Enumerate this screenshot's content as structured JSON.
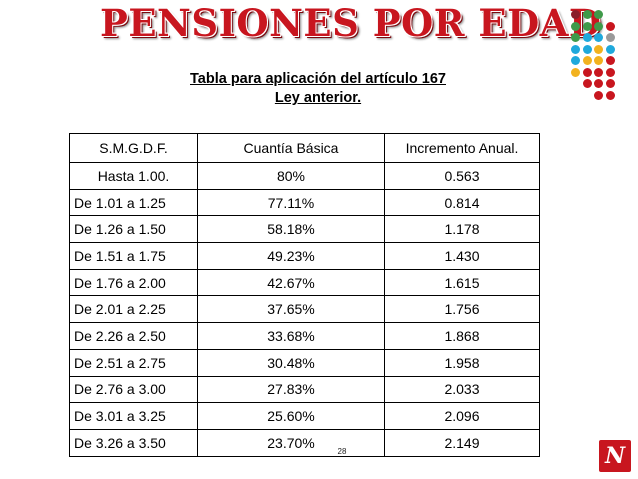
{
  "title": "PENSIONES POR EDAD",
  "subtitle": {
    "line1": "Tabla para aplicación del artículo 167",
    "line2": "Ley anterior."
  },
  "table": {
    "headers": [
      "S.M.G.D.F.",
      "Cuantía Básica",
      "Incremento Anual."
    ],
    "rows": [
      [
        "Hasta 1.00.",
        "80%",
        "0.563"
      ],
      [
        "De 1.01 a 1.25",
        "77.11%",
        "0.814"
      ],
      [
        "De 1.26 a 1.50",
        "58.18%",
        "1.178"
      ],
      [
        "De 1.51 a 1.75",
        "49.23%",
        "1.430"
      ],
      [
        "De 1.76 a 2.00",
        "42.67%",
        "1.615"
      ],
      [
        "De 2.01 a 2.25",
        "37.65%",
        "1.756"
      ],
      [
        "De 2.26 a 2.50",
        "33.68%",
        "1.868"
      ],
      [
        "De 2.51 a 2.75",
        "30.48%",
        "1.958"
      ],
      [
        "De 2.76 a 3.00",
        "27.83%",
        "2.033"
      ],
      [
        "De 3.01 a 3.25",
        "25.60%",
        "2.096"
      ],
      [
        "De 3.26 a 3.50",
        "23.70%",
        "2.149"
      ]
    ]
  },
  "page_number": "28",
  "colors": {
    "title_red": "#c8161f",
    "dot_red": "#c8161f",
    "dot_green": "#3f9a4a",
    "dot_blue": "#1fa9dc",
    "dot_yellow": "#f2b21f",
    "dot_maroon": "#8a1d2a",
    "dot_gray": "#9a9a9a"
  },
  "logo": {
    "icon": "brand-logo-icon",
    "glyph": "N"
  },
  "decoration": {
    "icon": "dot-grid-icon"
  }
}
